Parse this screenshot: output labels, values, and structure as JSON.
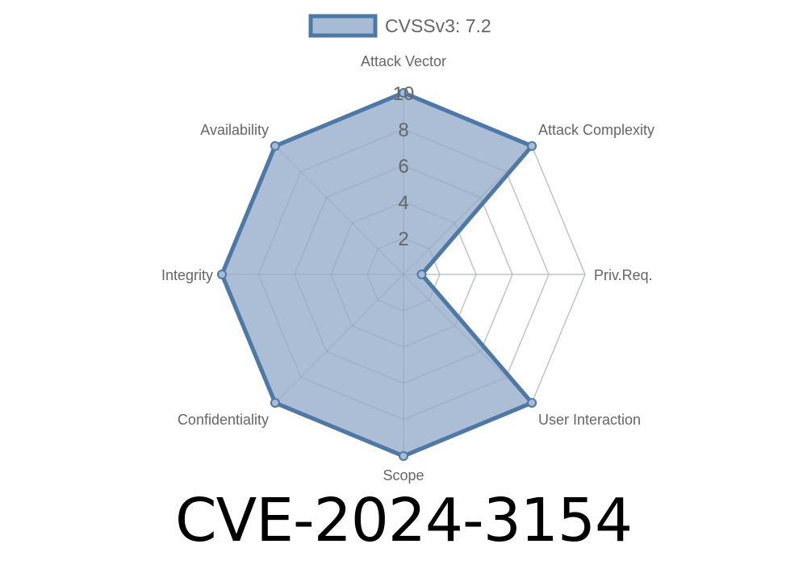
{
  "chart_data": {
    "type": "radar",
    "legend": {
      "label": "CVSSv3: 7.2",
      "position": "top"
    },
    "axes": [
      "Attack Vector",
      "Attack Complexity",
      "Priv.Req.",
      "User Interaction",
      "Scope",
      "Confidentiality",
      "Integrity",
      "Availability"
    ],
    "series": [
      {
        "name": "CVSSv3: 7.2",
        "values": [
          10,
          10,
          1,
          10,
          10,
          10,
          10,
          10
        ]
      }
    ],
    "r_range": [
      0,
      10
    ],
    "r_ticks": [
      "2",
      "4",
      "6",
      "8",
      "10"
    ],
    "grid": true,
    "colors": {
      "line": "#4e79a7",
      "fill": "#a7bbd4",
      "grid": "#dddddd",
      "label": "#666666"
    }
  },
  "title": "CVE-2024-3154"
}
